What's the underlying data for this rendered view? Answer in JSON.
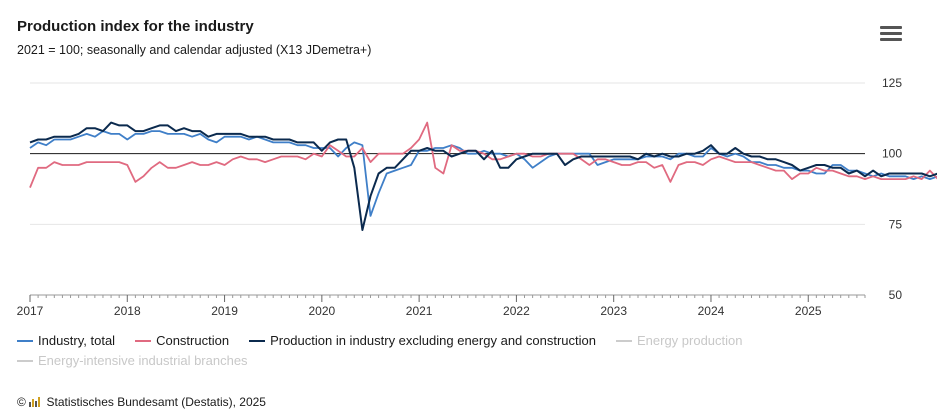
{
  "header": {
    "title": "Production index for the industry",
    "subtitle": "2021 = 100; seasonally and calendar adjusted (X13 JDemetra+)"
  },
  "icons": {
    "menu": "hamburger-menu-icon",
    "logo": "destatis-bar-logo-icon"
  },
  "credits": {
    "copyright_symbol": "©",
    "text": "Statistisches Bundesamt (Destatis), 2025"
  },
  "chart_data": {
    "type": "line",
    "title": "Production index for the industry",
    "subtitle": "2021 = 100; seasonally and calendar adjusted (X13 JDemetra+)",
    "x_start": "2017-01",
    "x_end": "2025-08",
    "x_tick_labels": [
      "2017",
      "2018",
      "2019",
      "2020",
      "2021",
      "2022",
      "2023",
      "2024",
      "2025"
    ],
    "ylim": [
      50,
      125
    ],
    "y_ticks": [
      50,
      75,
      100,
      125
    ],
    "y_axis_side": "right",
    "reference_line": 100,
    "grid": true,
    "legend_position": "bottom",
    "series": [
      {
        "name": "Industry, total",
        "color": "#3f7fc8",
        "visible": true,
        "values": [
          102,
          104,
          103,
          105,
          105,
          105,
          106,
          107,
          106,
          108,
          107,
          107,
          105,
          107,
          107,
          108,
          108,
          107,
          107,
          107,
          106,
          107,
          105,
          104,
          106,
          106,
          106,
          105,
          106,
          105,
          104,
          104,
          104,
          103,
          103,
          102,
          102,
          102,
          99,
          102,
          104,
          103,
          78,
          86,
          93,
          94,
          95,
          96,
          101,
          101,
          102,
          102,
          103,
          102,
          100,
          100,
          101,
          100,
          100,
          99,
          100,
          98,
          95,
          97,
          99,
          100,
          100,
          100,
          100,
          100,
          96,
          97,
          98,
          98,
          98,
          98,
          99,
          99,
          99,
          98,
          100,
          100,
          99,
          99,
          102,
          100,
          99,
          100,
          99,
          97,
          97,
          96,
          96,
          95,
          95,
          94,
          94,
          93,
          93,
          96,
          96,
          94,
          94,
          93,
          92,
          93,
          92,
          92,
          92,
          91,
          92,
          91,
          92,
          93,
          92,
          93,
          92,
          92,
          92,
          92,
          90
        ]
      },
      {
        "name": "Construction",
        "color": "#e06a80",
        "visible": true,
        "values": [
          88,
          95,
          95,
          97,
          96,
          96,
          96,
          97,
          97,
          97,
          97,
          97,
          96,
          90,
          92,
          95,
          97,
          95,
          95,
          96,
          97,
          96,
          96,
          97,
          96,
          98,
          99,
          98,
          98,
          97,
          98,
          99,
          99,
          99,
          98,
          100,
          99,
          103,
          101,
          99,
          99,
          102,
          97,
          100,
          100,
          100,
          100,
          102,
          105,
          111,
          95,
          93,
          103,
          101,
          101,
          101,
          100,
          98,
          98,
          99,
          100,
          100,
          99,
          99,
          100,
          100,
          100,
          100,
          98,
          96,
          98,
          98,
          97,
          96,
          96,
          97,
          97,
          95,
          96,
          90,
          96,
          97,
          97,
          96,
          98,
          99,
          98,
          97,
          97,
          97,
          96,
          95,
          94,
          94,
          91,
          93,
          93,
          95,
          94,
          94,
          93,
          92,
          92,
          91,
          92,
          91,
          91,
          91,
          91,
          92,
          91,
          94,
          91,
          91,
          91,
          92,
          89,
          90,
          91,
          91,
          91
        ]
      },
      {
        "name": "Production in industry excluding energy and construction",
        "color": "#0b2a4e",
        "visible": true,
        "values": [
          104,
          105,
          105,
          106,
          106,
          106,
          107,
          109,
          109,
          108,
          111,
          110,
          110,
          108,
          108,
          109,
          110,
          110,
          108,
          109,
          108,
          108,
          106,
          107,
          107,
          107,
          107,
          106,
          106,
          106,
          105,
          105,
          105,
          104,
          104,
          104,
          101,
          104,
          105,
          105,
          95,
          73,
          85,
          93,
          95,
          95,
          98,
          101,
          101,
          102,
          101,
          101,
          99,
          100,
          101,
          101,
          98,
          101,
          95,
          95,
          98,
          99,
          100,
          100,
          100,
          100,
          96,
          98,
          99,
          99,
          99,
          99,
          99,
          99,
          99,
          98,
          100,
          99,
          100,
          99,
          99,
          100,
          100,
          101,
          103,
          100,
          100,
          102,
          100,
          99,
          99,
          98,
          98,
          97,
          96,
          94,
          95,
          96,
          96,
          95,
          95,
          93,
          94,
          92,
          94,
          92,
          93,
          93,
          93,
          93,
          93,
          92,
          93,
          93,
          93,
          95,
          93,
          93,
          93,
          94,
          89
        ]
      },
      {
        "name": "Energy production",
        "color": "#aaaaaa",
        "visible": false,
        "values": []
      },
      {
        "name": "Energy-intensive industrial branches",
        "color": "#aaaaaa",
        "visible": false,
        "values": []
      }
    ]
  }
}
